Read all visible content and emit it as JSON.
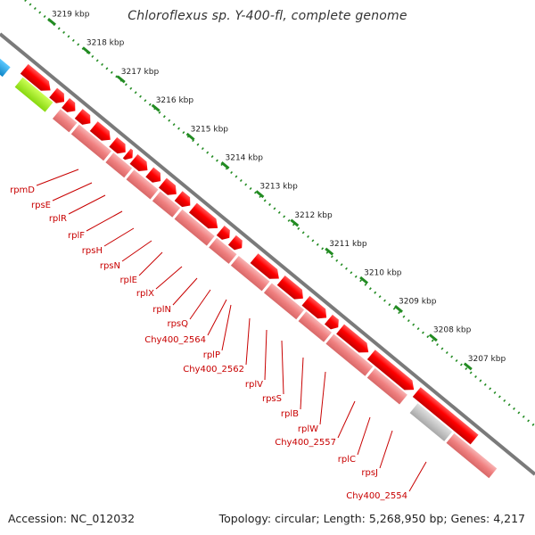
{
  "title": "Chloroflexus sp. Y-400-fl, complete genome",
  "footer": {
    "accession": "Accession: NC_012032",
    "summary": "Topology: circular; Length: 5,268,950 bp; Genes: 4,217"
  },
  "ruler": {
    "ticks": [
      "3219 kbp",
      "3218 kbp",
      "3217 kbp",
      "3216 kbp",
      "3215 kbp",
      "3214 kbp",
      "3213 kbp",
      "3212 kbp",
      "3211 kbp",
      "3210 kbp",
      "3209 kbp",
      "3208 kbp",
      "3207 kbp"
    ]
  },
  "gene_labels": [
    "rpmD",
    "rpsE",
    "rplR",
    "rplF",
    "rpsH",
    "rpsN",
    "rplE",
    "rplX",
    "rplN",
    "rpsQ",
    "Chy400_2564",
    "rplP",
    "Chy400_2562",
    "rplV",
    "rpsS",
    "rplB",
    "rplW",
    "Chy400_2557",
    "rplC",
    "rpsJ",
    "Chy400_2554"
  ],
  "colors": {
    "cds_forward": "#ff0000",
    "cds_reverse": "#f08080",
    "gray_feature": "#c0c0c0",
    "blue_feature": "#1aa3e6",
    "green_feature": "#99ee22",
    "backbone": "#7a7a7a",
    "ruler_dots": "#228b22",
    "label_text": "#c80000"
  }
}
